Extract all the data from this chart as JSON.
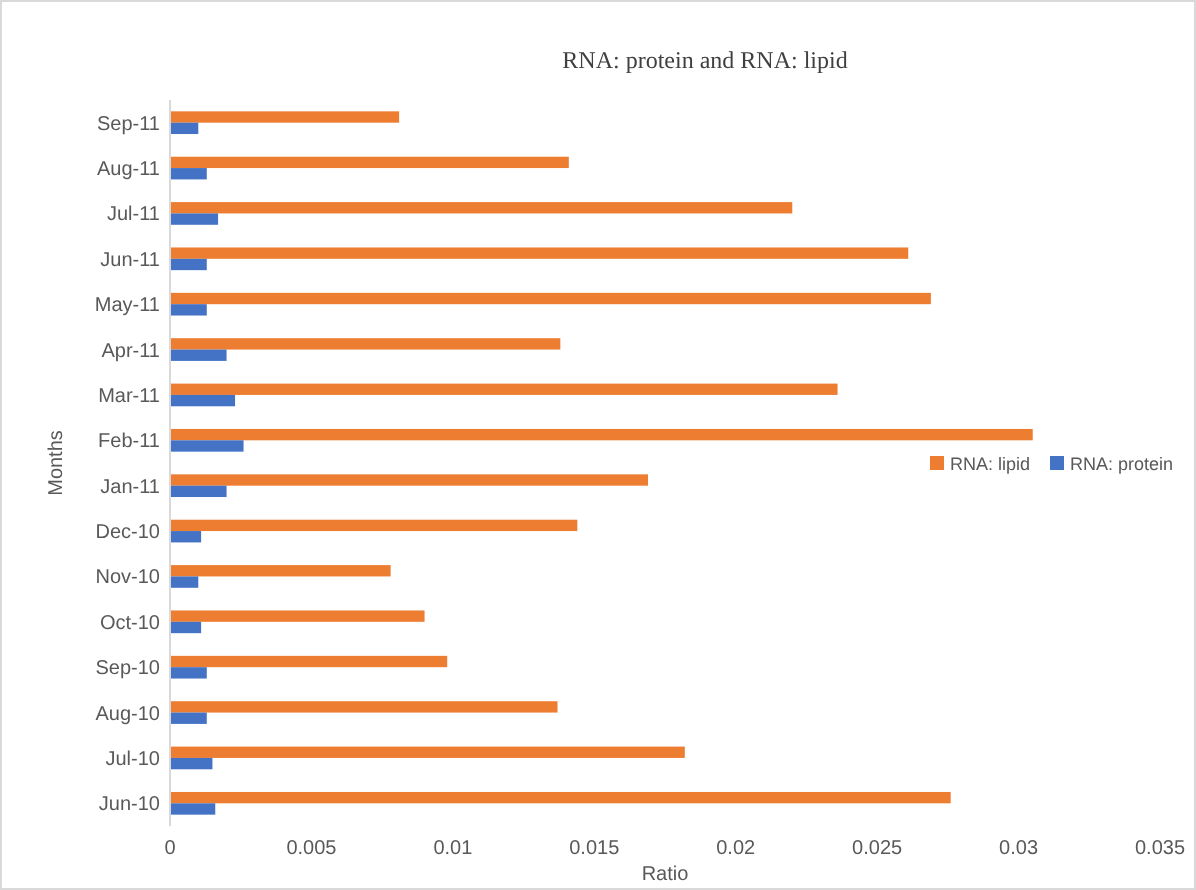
{
  "chart_data": {
    "type": "bar",
    "orientation": "horizontal",
    "title": "RNA: protein and RNA: lipid",
    "xlabel": "Ratio",
    "ylabel": "Months",
    "categories": [
      "Sep-11",
      "Aug-11",
      "Jul-11",
      "Jun-11",
      "May-11",
      "Apr-11",
      "Mar-11",
      "Feb-11",
      "Jan-11",
      "Dec-10",
      "Nov-10",
      "Oct-10",
      "Sep-10",
      "Aug-10",
      "Jul-10",
      "Jun-10"
    ],
    "series": [
      {
        "name": "RNA: lipid",
        "color": "#ed7d31",
        "values": [
          0.0081,
          0.0141,
          0.022,
          0.0261,
          0.0269,
          0.0138,
          0.0236,
          0.0305,
          0.0169,
          0.0144,
          0.0078,
          0.009,
          0.0098,
          0.0137,
          0.0182,
          0.0276
        ]
      },
      {
        "name": "RNA: protein",
        "color": "#4472c4",
        "values": [
          0.001,
          0.0013,
          0.0017,
          0.0013,
          0.0013,
          0.002,
          0.0023,
          0.0026,
          0.002,
          0.0011,
          0.001,
          0.0011,
          0.0013,
          0.0013,
          0.0015,
          0.0016
        ]
      }
    ],
    "xlim": [
      0,
      0.035
    ],
    "xticks": [
      0,
      0.005,
      0.01,
      0.015,
      0.02,
      0.025,
      0.03,
      0.035
    ],
    "grid": false,
    "legend": "right"
  }
}
